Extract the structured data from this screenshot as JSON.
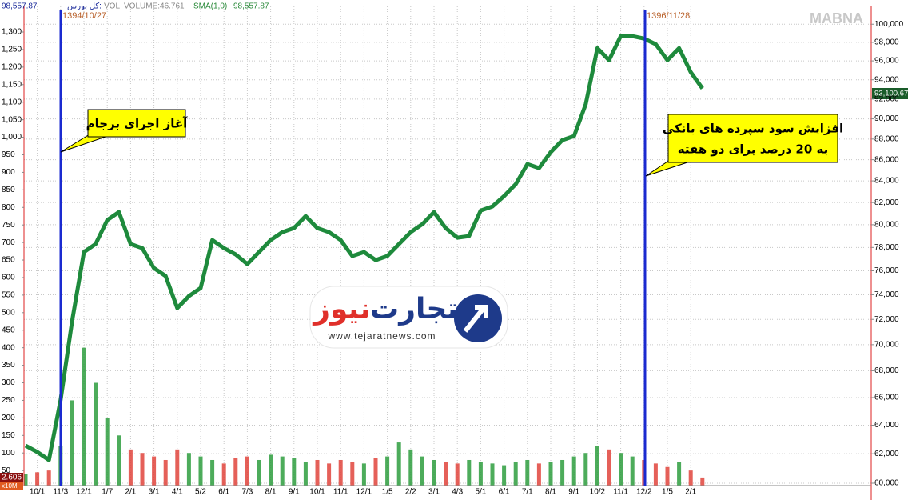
{
  "chart_data": {
    "type": "line",
    "header": {
      "index_value": "98,557.87",
      "volume_label": "VOLUME:46.761",
      "sma_label": "SMA(1,0)",
      "sma_value": "98,557.87"
    },
    "watermark": "MABNA",
    "events": [
      {
        "label": "1394/10/27",
        "text": [
          "آغاز اجرای برجام"
        ]
      },
      {
        "label": "1396/11/28",
        "text": [
          "افزایش سود سپرده های بانکی",
          "به 20 درصد برای دو هفته"
        ]
      }
    ],
    "logo": {
      "name_1": "تجارت",
      "name_2": "نیوز",
      "url": "www.tejaratnews.com"
    },
    "last_price_label": "93,100.67",
    "volume_now": "2.606",
    "volume_unit": "x10M",
    "categories": [
      null,
      "10/1",
      null,
      "11/3",
      null,
      "12/1",
      null,
      "1/7",
      null,
      "2/1",
      null,
      "3/1",
      null,
      "4/1",
      null,
      "5/2",
      null,
      "6/1",
      null,
      "7/3",
      null,
      "8/1",
      null,
      "9/1",
      null,
      "10/1",
      null,
      "11/1",
      null,
      "12/1",
      null,
      "1/5",
      null,
      "2/2",
      null,
      "3/1",
      null,
      "4/3",
      null,
      "5/1",
      null,
      "6/1",
      null,
      "7/1",
      null,
      "8/1",
      null,
      "9/1",
      null,
      "10/2",
      null,
      "11/1",
      null,
      "12/2",
      null,
      "1/5",
      null,
      "2/1",
      null
    ],
    "series": [
      {
        "name": "کل بورس:",
        "type": "line",
        "axis": "y2",
        "color": "#1e8a3c",
        "values": [
          62560,
          62120,
          61570,
          65820,
          71940,
          77600,
          78300,
          80410,
          81130,
          78300,
          77940,
          76230,
          75560,
          72910,
          73890,
          74550,
          78640,
          77940,
          77400,
          76570,
          77600,
          78640,
          79340,
          79700,
          80770,
          79700,
          79340,
          78640,
          77260,
          77600,
          76910,
          77260,
          78300,
          79340,
          80050,
          81130,
          79700,
          78850,
          78990,
          81270,
          81640,
          82590,
          83690,
          85580,
          85200,
          86730,
          87900,
          88290,
          91480,
          97370,
          96080,
          98680,
          98680,
          98410,
          97800,
          96080,
          97370,
          94800,
          93100
        ]
      },
      {
        "name": "VOL",
        "type": "bar",
        "color": "#2e9e3e",
        "down_color": "#e0443c",
        "values": [
          40,
          45,
          50,
          120,
          250,
          400,
          300,
          200,
          150,
          110,
          100,
          90,
          80,
          110,
          100,
          90,
          80,
          70,
          85,
          90,
          80,
          95,
          90,
          85,
          75,
          80,
          70,
          80,
          75,
          70,
          85,
          90,
          130,
          110,
          90,
          80,
          75,
          70,
          80,
          75,
          70,
          65,
          75,
          80,
          70,
          75,
          80,
          90,
          100,
          120,
          110,
          100,
          90,
          80,
          70,
          60,
          75,
          50,
          30
        ]
      }
    ],
    "ylim": [
      7,
      1373
    ],
    "yticks": [
      50,
      100,
      150,
      200,
      250,
      300,
      350,
      400,
      450,
      500,
      550,
      600,
      650,
      700,
      750,
      800,
      850,
      900,
      950,
      {
        "value": 1000,
        "label": "1,000"
      },
      {
        "value": 1050,
        "label": "1,050"
      },
      {
        "value": 1100,
        "label": "1,100"
      },
      {
        "value": 1150,
        "label": "1,150"
      },
      {
        "value": 1200,
        "label": "1,200"
      },
      {
        "value": 1250,
        "label": "1,250"
      },
      {
        "value": 1300,
        "label": "1,300"
      }
    ],
    "y2lim": [
      59840,
      102000
    ],
    "y2log": true,
    "y2ticks": [
      {
        "value": 60000,
        "label": "60,000"
      },
      {
        "value": 62000,
        "label": "62,000"
      },
      {
        "value": 64000,
        "label": "64,000"
      },
      {
        "value": 66000,
        "label": "66,000"
      },
      {
        "value": 68000,
        "label": "68,000"
      },
      {
        "value": 70000,
        "label": "70,000"
      },
      {
        "value": 72000,
        "label": "72,000"
      },
      {
        "value": 74000,
        "label": "74,000"
      },
      {
        "value": 76000,
        "label": "76,000"
      },
      {
        "value": 78000,
        "label": "78,000"
      },
      {
        "value": 80000,
        "label": "80,000"
      },
      {
        "value": 82000,
        "label": "82,000"
      },
      {
        "value": 84000,
        "label": "84,000"
      },
      {
        "value": 86000,
        "label": "86,000"
      },
      {
        "value": 88000,
        "label": "88,000"
      },
      {
        "value": 90000,
        "label": "90,000"
      },
      {
        "value": 92000,
        "label": "92,000"
      },
      {
        "value": 94000,
        "label": "94,000"
      },
      {
        "value": 96000,
        "label": "96,000"
      },
      {
        "value": 98000,
        "label": "98,000"
      },
      {
        "value": 100000,
        "label": "100,000"
      }
    ],
    "grid": true
  }
}
